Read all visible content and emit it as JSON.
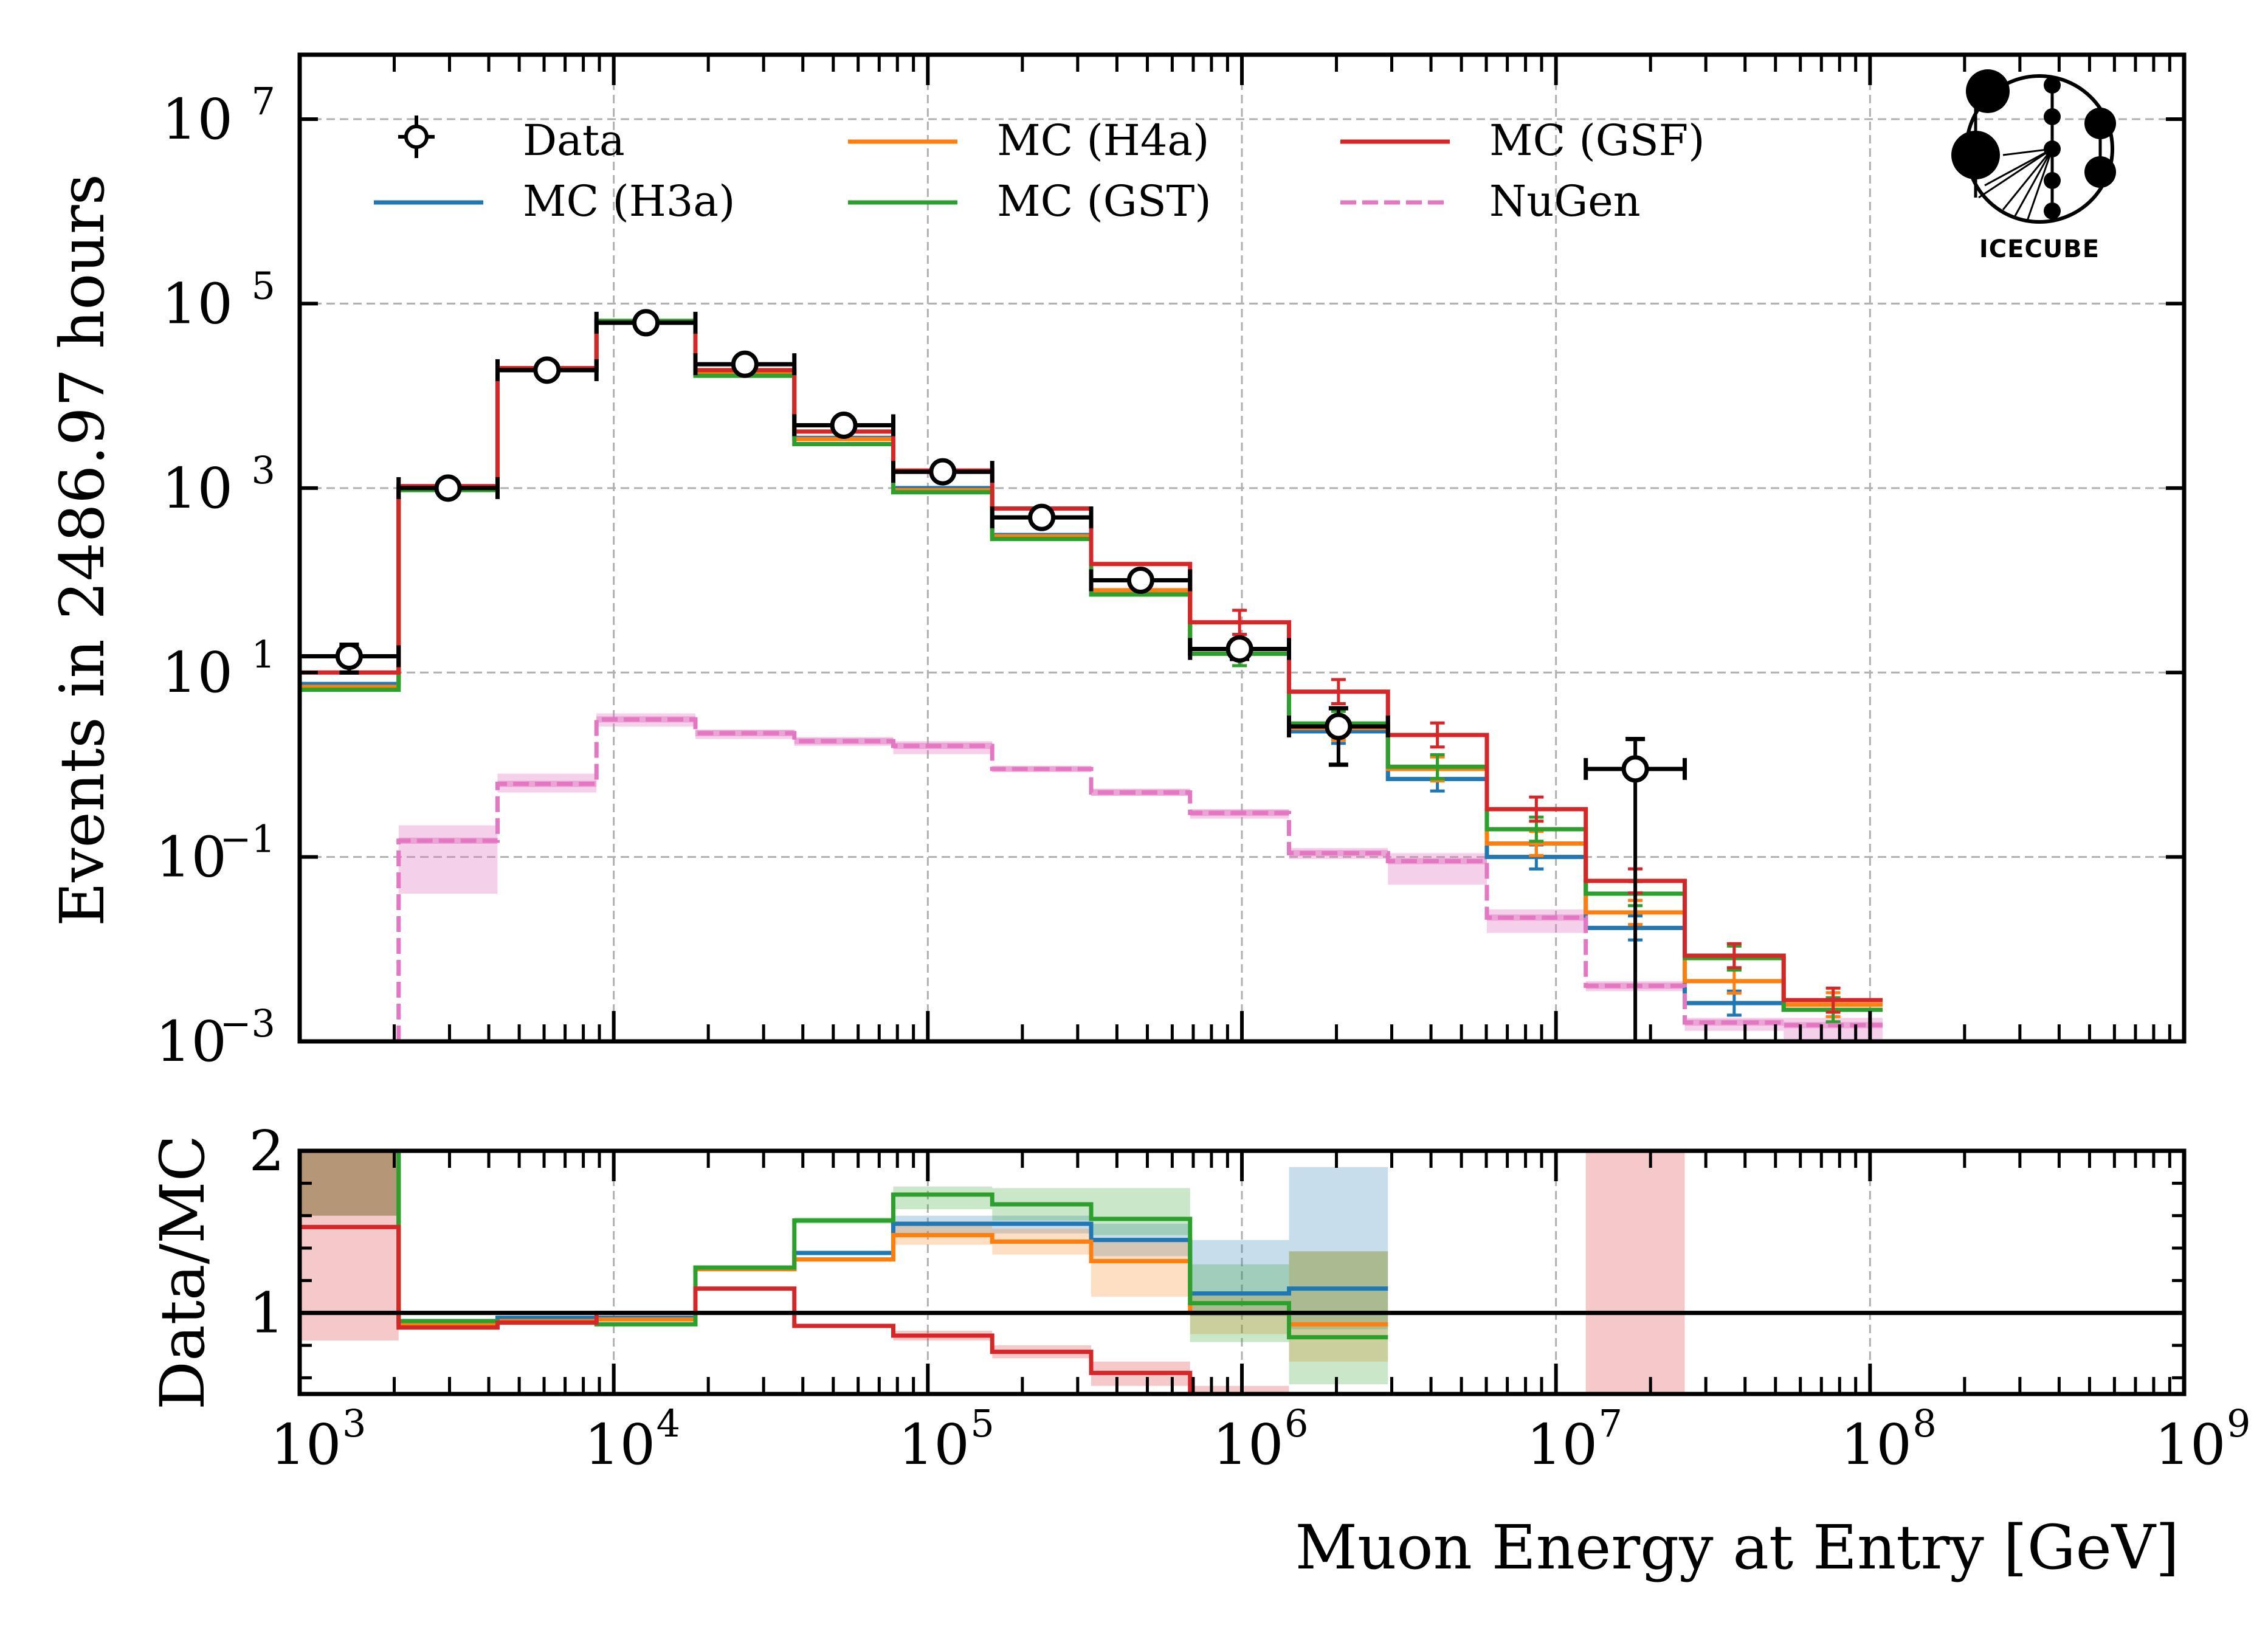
{
  "chart_data": [
    {
      "type": "step-histogram",
      "panel": "main",
      "title": "",
      "xlabel": "",
      "ylabel": "Events in 2486.97 hours",
      "xscale": "log",
      "yscale": "log",
      "xlim": [
        1000,
        1000000000
      ],
      "ylim": [
        0.001,
        50000000
      ],
      "grid": true,
      "legend_position": "top",
      "yticks": [
        {
          "value": 10000000,
          "base": "10",
          "exp": "7"
        },
        {
          "value": 100000,
          "base": "10",
          "exp": "5"
        },
        {
          "value": 1000,
          "base": "10",
          "exp": "3"
        },
        {
          "value": 10,
          "base": "10",
          "exp": "1"
        },
        {
          "value": 0.1,
          "base": "10",
          "exp": "−1"
        },
        {
          "value": 0.001,
          "base": "10",
          "exp": "−3"
        }
      ],
      "bin_edges_log10": [
        3.0,
        3.315,
        3.63,
        3.945,
        4.26,
        4.575,
        4.89,
        5.205,
        5.52,
        5.835,
        6.15,
        6.465,
        6.78,
        7.095,
        7.41,
        7.725,
        8.04
      ],
      "series": [
        {
          "name": "Data",
          "kind": "points",
          "color": "#000000",
          "values": [
            15,
            1000,
            19000,
            62000,
            22000,
            4800,
            1500,
            480,
            100,
            18,
            2.6,
            null,
            null,
            0.9,
            null,
            null
          ],
          "yerr_low": [
            5,
            30,
            140,
            250,
            150,
            70,
            40,
            22,
            10,
            4,
            1.6,
            null,
            null,
            0.9,
            null,
            null
          ],
          "yerr_high": [
            5,
            30,
            140,
            250,
            150,
            70,
            40,
            22,
            10,
            4,
            1.5,
            null,
            null,
            1.0,
            null,
            null
          ]
        },
        {
          "name": "MC (H3a)",
          "kind": "step",
          "color": "#1f77b4",
          "values": [
            7.5,
            1000,
            19500,
            63000,
            17500,
            3500,
            1000,
            310,
            75,
            16,
            2.3,
            0.7,
            0.1,
            0.017,
            0.0026,
            0.0022
          ]
        },
        {
          "name": "MC (H4a)",
          "kind": "step",
          "color": "#ff7f0e",
          "values": [
            7.0,
            1000,
            19500,
            63000,
            17500,
            3400,
            950,
            300,
            78,
            16,
            2.5,
            0.9,
            0.14,
            0.025,
            0.0045,
            0.0025
          ]
        },
        {
          "name": "MC (GST)",
          "kind": "step",
          "color": "#2ca02c",
          "values": [
            6.5,
            950,
            19000,
            65000,
            16500,
            3000,
            900,
            280,
            70,
            16,
            2.8,
            0.95,
            0.2,
            0.04,
            0.008,
            0.0022
          ]
        },
        {
          "name": "MC (GSF)",
          "kind": "step",
          "color": "#d62728",
          "values": [
            10,
            1050,
            20000,
            62000,
            19000,
            4100,
            1550,
            600,
            150,
            35,
            6.2,
            2.1,
            0.33,
            0.055,
            0.0085,
            0.0028
          ]
        },
        {
          "name": "NuGen",
          "kind": "dashed-step-band",
          "color": "#e377c2",
          "values": [
            null,
            0.15,
            0.62,
            3.1,
            2.2,
            1.8,
            1.6,
            0.9,
            0.5,
            0.3,
            0.11,
            0.09,
            0.022,
            0.004,
            0.0016,
            0.0015
          ],
          "band_low": [
            null,
            0.04,
            0.5,
            2.6,
            1.9,
            1.6,
            1.3,
            0.85,
            0.46,
            0.26,
            0.095,
            0.05,
            0.015,
            0.0035,
            0.0013,
            0.0008
          ],
          "band_high": [
            null,
            0.22,
            0.8,
            3.6,
            2.4,
            2.0,
            1.8,
            0.95,
            0.55,
            0.33,
            0.125,
            0.11,
            0.027,
            0.0045,
            0.0018,
            0.0018
          ]
        }
      ]
    },
    {
      "type": "step-ratio",
      "panel": "ratio",
      "xlabel": "Muon Energy at Entry [GeV]",
      "ylabel": "Data/MC",
      "xscale": "log",
      "xlim": [
        1000,
        1000000000
      ],
      "ylim": [
        0.5,
        2.0
      ],
      "yticks": [
        {
          "value": 1,
          "label": "1"
        },
        {
          "value": 2,
          "label": "2"
        }
      ],
      "xticks": [
        {
          "value": 1000,
          "base": "10",
          "exp": "3"
        },
        {
          "value": 10000,
          "base": "10",
          "exp": "4"
        },
        {
          "value": 100000,
          "base": "10",
          "exp": "5"
        },
        {
          "value": 1000000,
          "base": "10",
          "exp": "6"
        },
        {
          "value": 10000000,
          "base": "10",
          "exp": "7"
        },
        {
          "value": 100000000,
          "base": "10",
          "exp": "8"
        },
        {
          "value": 1000000000,
          "base": "10",
          "exp": "9"
        }
      ],
      "reference_line": 1.0,
      "series": [
        {
          "name": "MC (H3a)",
          "color": "#1f77b4",
          "values": [
            2.0,
            0.94,
            0.97,
            0.97,
            1.27,
            1.37,
            1.55,
            1.55,
            1.45,
            1.12,
            1.15
          ],
          "band_low": [
            1.6,
            0.93,
            0.96,
            0.96,
            1.26,
            1.36,
            1.49,
            1.49,
            1.35,
            0.98,
            0.9
          ],
          "band_high": [
            2.0,
            0.96,
            0.98,
            0.98,
            1.29,
            1.38,
            1.6,
            1.6,
            1.55,
            1.45,
            1.9
          ]
        },
        {
          "name": "MC (H4a)",
          "color": "#ff7f0e",
          "values": [
            2.0,
            0.93,
            0.95,
            0.96,
            1.27,
            1.33,
            1.48,
            1.44,
            1.32,
            1.0,
            0.93
          ],
          "band_low": [
            1.6,
            0.92,
            0.94,
            0.95,
            1.26,
            1.32,
            1.42,
            1.36,
            1.1,
            0.87,
            0.7
          ],
          "band_high": [
            2.0,
            0.94,
            0.96,
            0.97,
            1.28,
            1.34,
            1.55,
            1.52,
            1.45,
            1.12,
            1.38
          ]
        },
        {
          "name": "MC (GST)",
          "color": "#2ca02c",
          "values": [
            2.0,
            0.95,
            0.94,
            0.93,
            1.28,
            1.57,
            1.73,
            1.67,
            1.58,
            1.06,
            0.85
          ],
          "band_low": [
            1.6,
            0.94,
            0.93,
            0.92,
            1.27,
            1.55,
            1.64,
            1.57,
            1.48,
            0.82,
            0.56
          ],
          "band_high": [
            2.0,
            0.96,
            0.95,
            0.94,
            1.29,
            1.59,
            1.78,
            1.77,
            1.77,
            1.3,
            1.38
          ]
        },
        {
          "name": "MC (GSF)",
          "color": "#d62728",
          "values": [
            1.53,
            0.91,
            0.94,
            1.0,
            1.15,
            0.92,
            0.86,
            0.76,
            0.63,
            0.5,
            null,
            null,
            null,
            2.0
          ],
          "band_low": [
            0.83,
            0.9,
            0.93,
            0.99,
            1.14,
            0.91,
            0.83,
            0.72,
            0.55,
            0.5,
            null,
            null,
            null,
            0.5
          ],
          "band_high": [
            2.0,
            0.92,
            0.95,
            1.01,
            1.16,
            0.93,
            0.89,
            0.8,
            0.7,
            0.55,
            null,
            null,
            null,
            2.0
          ]
        }
      ]
    }
  ],
  "legend": {
    "items": [
      {
        "label": "Data",
        "kind": "point",
        "color": "#000000"
      },
      {
        "label": "MC (H3a)",
        "kind": "line",
        "color": "#1f77b4"
      },
      {
        "label": "MC (H4a)",
        "kind": "line",
        "color": "#ff7f0e"
      },
      {
        "label": "MC (GST)",
        "kind": "line",
        "color": "#2ca02c"
      },
      {
        "label": "MC (GSF)",
        "kind": "line",
        "color": "#d62728"
      },
      {
        "label": "NuGen",
        "kind": "dashed",
        "color": "#e377c2"
      }
    ]
  },
  "logo": {
    "text": "IceCube",
    "icon": "icecube-logo-icon"
  }
}
